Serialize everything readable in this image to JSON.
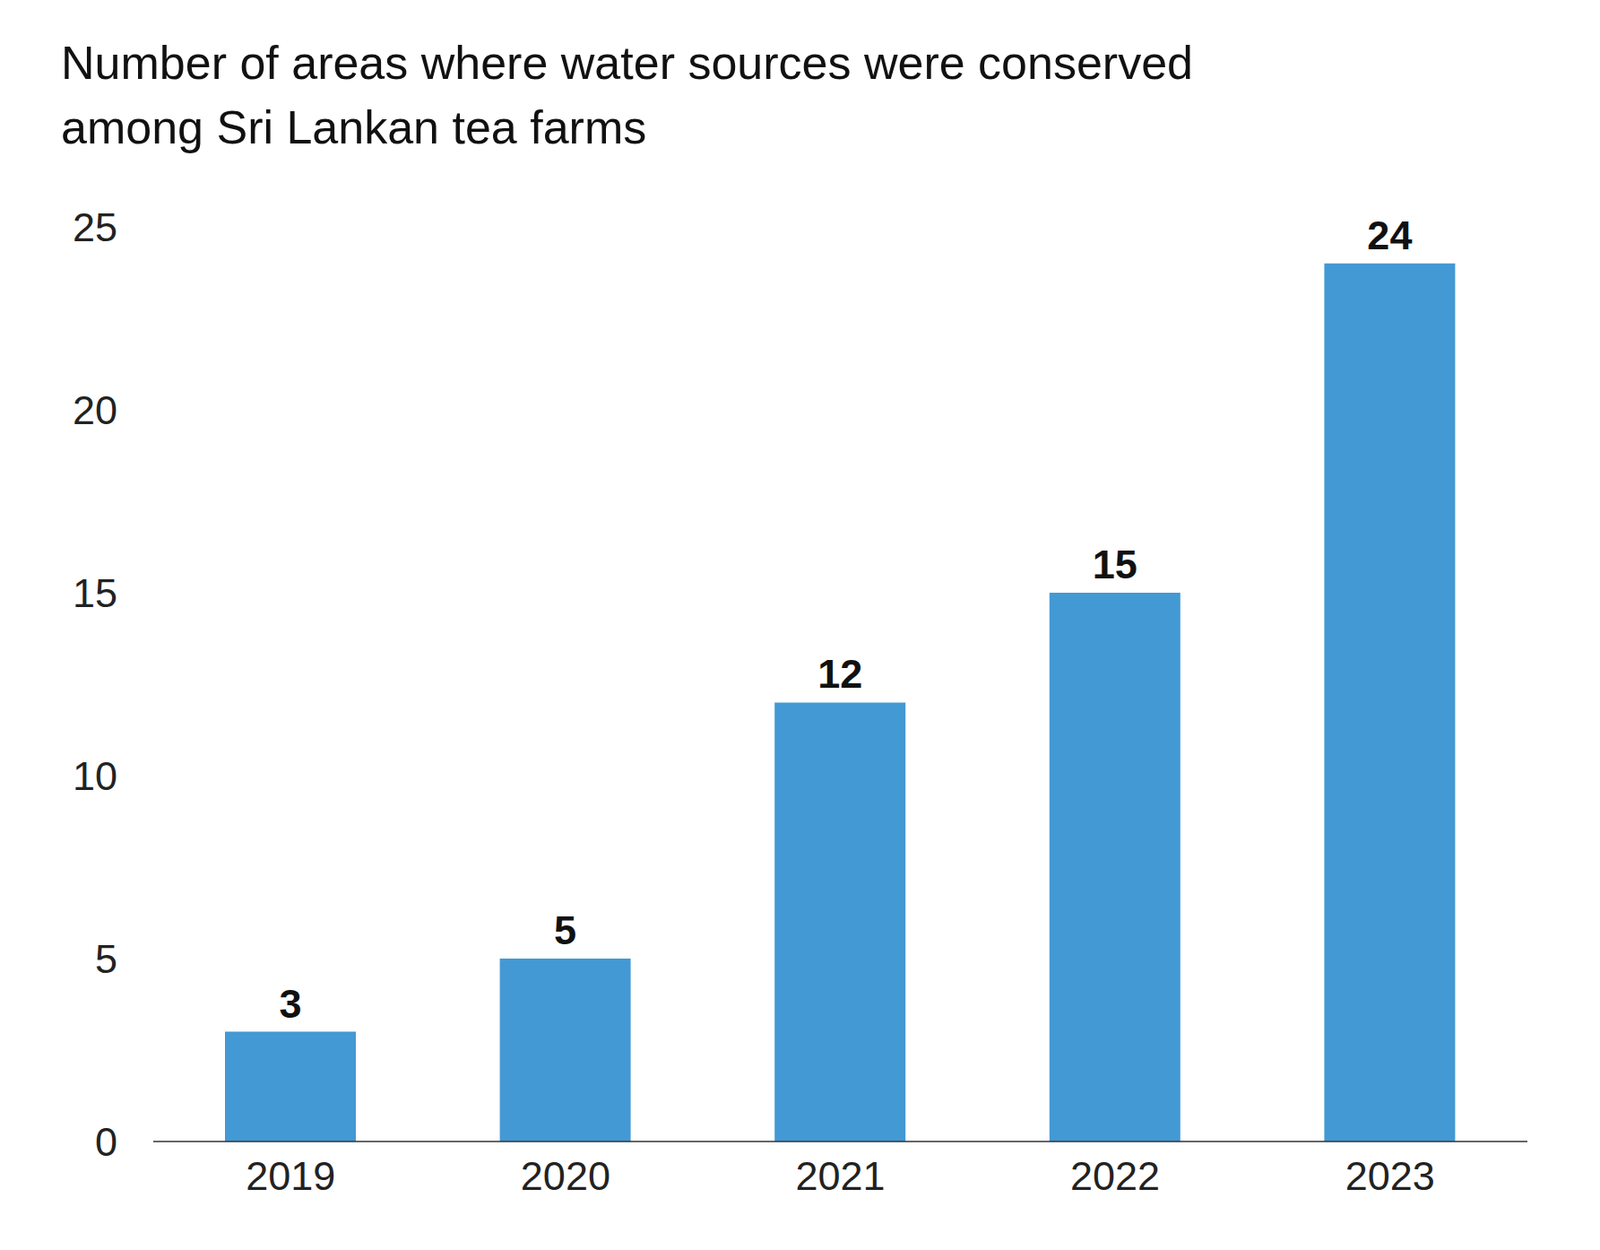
{
  "chart_data": {
    "type": "bar",
    "title": "Number of areas where water sources were conserved among Sri Lankan tea farms",
    "categories": [
      "2019",
      "2020",
      "2021",
      "2022",
      "2023"
    ],
    "values": [
      3,
      5,
      12,
      15,
      24
    ],
    "color": "#4399d4",
    "ylim": [
      0,
      25
    ],
    "yticks": [
      0,
      5,
      10,
      15,
      20,
      25
    ],
    "grid": false,
    "data_labels": true
  }
}
